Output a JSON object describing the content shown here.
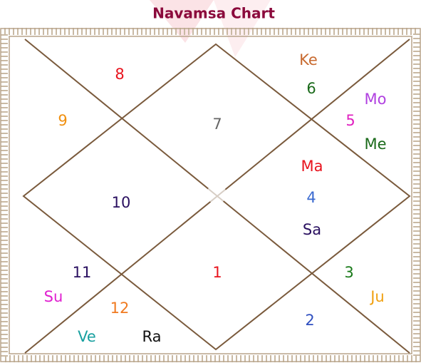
{
  "title": "Navamsa Chart",
  "houses": [
    {
      "sign": "7",
      "planets": []
    },
    {
      "sign": "8",
      "planets": []
    },
    {
      "sign": "9",
      "planets": []
    },
    {
      "sign": "10",
      "planets": []
    },
    {
      "sign": "11",
      "planets": [
        "Su"
      ]
    },
    {
      "sign": "12",
      "planets": [
        "Ve",
        "Ra"
      ]
    },
    {
      "sign": "1",
      "planets": []
    },
    {
      "sign": "2",
      "planets": []
    },
    {
      "sign": "3",
      "planets": [
        "Ju"
      ]
    },
    {
      "sign": "4",
      "planets": [
        "Ma",
        "Sa"
      ]
    },
    {
      "sign": "5",
      "planets": [
        "Mo",
        "Me"
      ]
    },
    {
      "sign": "6",
      "planets": [
        "Ke"
      ]
    }
  ]
}
